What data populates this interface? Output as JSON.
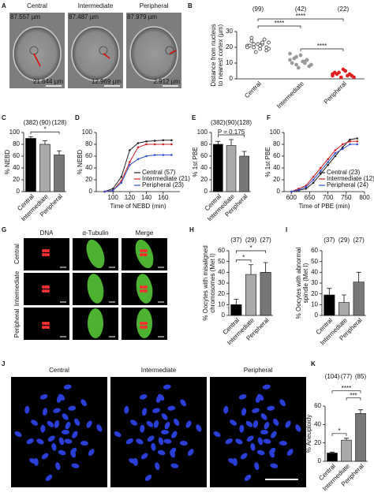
{
  "panel_letters": [
    "A",
    "B",
    "C",
    "D",
    "E",
    "F",
    "G",
    "H",
    "I",
    "J",
    "K"
  ],
  "panel_a": {
    "columns": [
      {
        "label": "Central",
        "scale": "87.557 µm",
        "distance": "21.644 µm"
      },
      {
        "label": "Intermediate",
        "scale": "87.487 µm",
        "distance": "12.969 µm"
      },
      {
        "label": "Peripheral",
        "scale": "87.979 µm",
        "distance": "2.912 µm"
      }
    ]
  },
  "panel_g": {
    "columns": [
      "DNA",
      "α-Tubulin",
      "Merge"
    ],
    "rows": [
      "Central",
      "Intermediate",
      "Peripheral"
    ]
  },
  "panel_j": {
    "labels": [
      "Central",
      "Intermediate",
      "Peripheral"
    ]
  },
  "chart_data": [
    {
      "type": "strip",
      "ylabel": [
        "Distance from nucleus",
        "to nearest cortex (µm)"
      ],
      "categories": [
        "Central",
        "Intermediate",
        "Peripheral"
      ],
      "counts": [
        "(99)",
        "(42)",
        "(22)"
      ],
      "colors": [
        "#222222",
        "#999999",
        "#e02020"
      ],
      "ylim": [
        0,
        30
      ],
      "yticks": [
        0,
        10,
        20,
        30
      ],
      "values": [
        [
          21,
          22,
          20,
          23,
          19,
          24,
          18,
          22,
          21,
          25,
          17,
          20,
          23,
          22,
          19,
          21,
          26,
          20
        ],
        [
          12,
          10,
          14,
          9,
          11,
          13,
          8,
          15,
          10,
          12,
          7,
          16,
          11,
          9
        ],
        [
          3,
          2,
          4,
          1,
          5,
          3,
          2,
          6,
          4,
          3,
          1,
          2
        ]
      ],
      "significance": [
        {
          "label": "****",
          "from": "Intermediate",
          "to": "Peripheral"
        },
        {
          "label": "****",
          "from": "Central",
          "to": "Intermediate"
        },
        {
          "label": "****",
          "from": "Central",
          "to": "Peripheral"
        }
      ]
    },
    {
      "type": "bar",
      "ylabel": "% NEBD",
      "categories": [
        "Central",
        "Intermediate",
        "Peripheral"
      ],
      "counts": [
        "(382)",
        "(90)",
        "(128)"
      ],
      "colors": [
        "#000000",
        "#aaaaaa",
        "#777777"
      ],
      "values": [
        90,
        80,
        62
      ],
      "errors": [
        3,
        6,
        7
      ],
      "ylim": [
        0,
        100
      ],
      "yticks": [
        0,
        20,
        40,
        60,
        80,
        100
      ],
      "significance": [
        {
          "label": "*",
          "from": "Central",
          "to": "Peripheral"
        }
      ]
    },
    {
      "type": "line",
      "ylabel": "% NEBD",
      "xlabel": "Time of NEBD (min)",
      "x": [
        90,
        100,
        110,
        120,
        130,
        140,
        150,
        160,
        170
      ],
      "xlim": [
        80,
        180
      ],
      "xticks": [
        100,
        120,
        140,
        160
      ],
      "ylim": [
        0,
        100
      ],
      "yticks": [
        0,
        20,
        40,
        60,
        80,
        100
      ],
      "legend": "lower right",
      "series": [
        {
          "name": "Central (57)",
          "color": "#222222",
          "values": [
            0,
            5,
            25,
            70,
            82,
            85,
            86,
            87,
            87
          ]
        },
        {
          "name": "Intermediate (21)",
          "color": "#d02020",
          "values": [
            0,
            2,
            18,
            50,
            75,
            80,
            80,
            80,
            80
          ]
        },
        {
          "name": "Peripheral (23)",
          "color": "#3050d0",
          "values": [
            0,
            2,
            15,
            45,
            55,
            60,
            62,
            62,
            62
          ]
        }
      ]
    },
    {
      "type": "bar",
      "ylabel": "% 1st PBE",
      "categories": [
        "Central",
        "Intermediate",
        "Peripheral"
      ],
      "counts": [
        "(382)",
        "(90)",
        "(128)"
      ],
      "colors": [
        "#000000",
        "#aaaaaa",
        "#777777"
      ],
      "values": [
        80,
        78,
        60
      ],
      "errors": [
        5,
        10,
        8
      ],
      "ylim": [
        0,
        100
      ],
      "yticks": [
        0,
        20,
        40,
        60,
        80,
        100
      ],
      "significance": [
        {
          "label": "P = 0.175",
          "from": "Central",
          "to": "Peripheral"
        }
      ]
    },
    {
      "type": "line",
      "ylabel": "% 1st PBE",
      "xlabel": "Time of PBE (min)",
      "x": [
        600,
        620,
        640,
        660,
        680,
        700,
        720,
        740,
        760,
        780
      ],
      "xlim": [
        580,
        800
      ],
      "xticks": [
        600,
        650,
        700,
        750,
        800
      ],
      "ylim": [
        0,
        100
      ],
      "yticks": [
        0,
        20,
        40,
        60,
        80,
        100
      ],
      "legend": "lower right",
      "series": [
        {
          "name": "Central (23)",
          "color": "#222222",
          "values": [
            0,
            2,
            5,
            15,
            30,
            45,
            60,
            75,
            88,
            90
          ]
        },
        {
          "name": "Intermediate (12)",
          "color": "#d02020",
          "values": [
            0,
            5,
            10,
            25,
            40,
            55,
            70,
            80,
            85,
            85
          ]
        },
        {
          "name": "Peripheral (24)",
          "color": "#3050d0",
          "values": [
            0,
            3,
            8,
            20,
            35,
            50,
            65,
            72,
            80,
            80
          ]
        }
      ]
    },
    {
      "type": "bar",
      "ylabel": [
        "% Oocytes with misaligned",
        "chromosomes (Met I)"
      ],
      "categories": [
        "Central",
        "Intermediate",
        "Peripheral"
      ],
      "counts": [
        "(37)",
        "(29)",
        "(27)"
      ],
      "colors": [
        "#000000",
        "#aaaaaa",
        "#777777"
      ],
      "values": [
        10,
        38,
        40
      ],
      "errors": [
        5,
        9,
        9
      ],
      "ylim": [
        0,
        60
      ],
      "yticks": [
        0,
        10,
        20,
        30,
        40,
        50,
        60
      ],
      "significance": [
        {
          "label": "*",
          "from": "Central",
          "to": "Intermediate"
        },
        {
          "label": "*",
          "from": "Central",
          "to": "Peripheral"
        }
      ]
    },
    {
      "type": "bar",
      "ylabel": [
        "% Oocytes with abnormal",
        "spindle (Met I)"
      ],
      "categories": [
        "Central",
        "Intermediate",
        "Peripheral"
      ],
      "counts": [
        "(37)",
        "(29)",
        "(27)"
      ],
      "colors": [
        "#000000",
        "#aaaaaa",
        "#777777"
      ],
      "values": [
        19,
        12,
        31
      ],
      "errors": [
        6,
        7,
        9
      ],
      "ylim": [
        0,
        60
      ],
      "yticks": [
        0,
        10,
        20,
        30,
        40,
        50,
        60
      ]
    },
    {
      "type": "bar",
      "ylabel": "% Aneuploidy",
      "categories": [
        "Central",
        "Intermediate",
        "Peripheral"
      ],
      "counts": [
        "(104)",
        "(77)",
        "(85)"
      ],
      "colors": [
        "#000000",
        "#aaaaaa",
        "#777777"
      ],
      "values": [
        9,
        23,
        52
      ],
      "errors": [
        1,
        2,
        4
      ],
      "ylim": [
        0,
        60
      ],
      "yticks": [
        0,
        20,
        40,
        60
      ],
      "significance": [
        {
          "label": "*",
          "from": "Central",
          "to": "Intermediate"
        },
        {
          "label": "***",
          "from": "Intermediate",
          "to": "Peripheral"
        },
        {
          "label": "****",
          "from": "Central",
          "to": "Peripheral"
        }
      ]
    }
  ]
}
